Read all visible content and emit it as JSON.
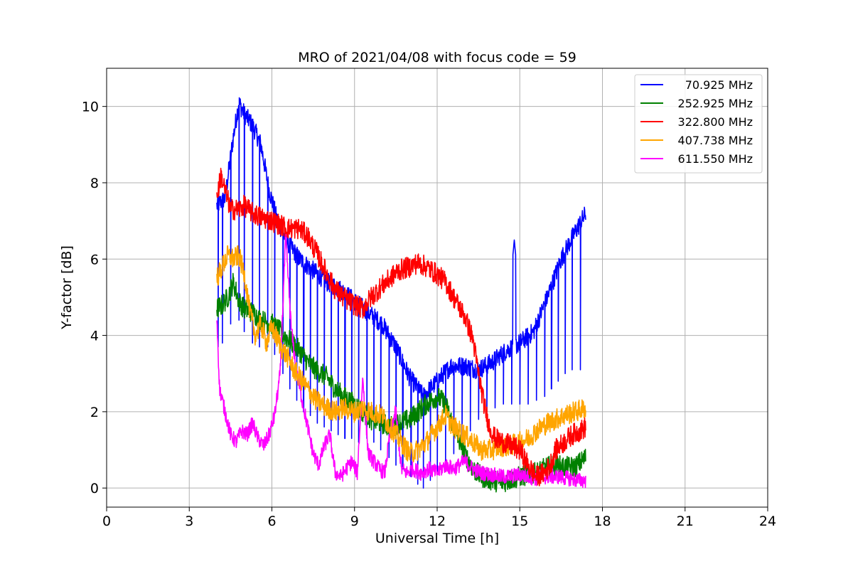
{
  "chart_data": {
    "type": "line",
    "title": "MRO of 2021/04/08 with focus code = 59",
    "xlabel": "Universal Time [h]",
    "ylabel": "Y-factor [dB]",
    "xlim": [
      0,
      24
    ],
    "ylim": [
      -0.5,
      11
    ],
    "xticks": [
      0,
      3,
      6,
      9,
      12,
      15,
      18,
      21,
      24
    ],
    "yticks": [
      0,
      2,
      4,
      6,
      8,
      10
    ],
    "grid": true,
    "legend_position": "top-right",
    "x_start": 4.0,
    "x_end": 17.4,
    "series": [
      {
        "name": "70.925 MHz",
        "color": "#0000ff",
        "baseline": [
          [
            4.0,
            7.4
          ],
          [
            4.3,
            7.6
          ],
          [
            4.6,
            9.2
          ],
          [
            4.8,
            10.1
          ],
          [
            5.0,
            9.8
          ],
          [
            5.3,
            9.5
          ],
          [
            5.6,
            9.0
          ],
          [
            5.9,
            7.8
          ],
          [
            6.2,
            7.0
          ],
          [
            6.6,
            6.4
          ],
          [
            7.0,
            6.0
          ],
          [
            7.5,
            5.7
          ],
          [
            8.0,
            5.4
          ],
          [
            8.5,
            5.2
          ],
          [
            9.0,
            4.9
          ],
          [
            9.5,
            4.6
          ],
          [
            10.0,
            4.3
          ],
          [
            10.5,
            3.7
          ],
          [
            11.0,
            2.9
          ],
          [
            11.5,
            2.4
          ],
          [
            12.0,
            2.8
          ],
          [
            12.5,
            3.2
          ],
          [
            13.0,
            3.2
          ],
          [
            13.5,
            3.1
          ],
          [
            14.0,
            3.3
          ],
          [
            14.5,
            3.6
          ],
          [
            15.0,
            3.8
          ],
          [
            15.5,
            4.1
          ],
          [
            16.0,
            5.0
          ],
          [
            16.5,
            6.0
          ],
          [
            17.0,
            6.7
          ],
          [
            17.4,
            7.2
          ]
        ],
        "spikes": [
          4.05,
          4.2,
          4.5,
          4.8,
          5.0,
          5.3,
          5.55,
          5.85,
          6.1,
          6.4,
          6.65,
          6.9,
          7.15,
          7.4,
          7.65,
          7.9,
          8.15,
          8.4,
          8.65,
          8.9,
          9.15,
          9.45,
          9.7,
          9.95,
          10.25,
          10.5,
          10.75,
          11.05,
          11.3,
          11.5,
          11.75,
          12.0,
          12.3,
          12.6,
          12.9,
          13.2,
          13.5,
          13.8,
          14.1,
          14.4,
          14.7,
          15.0,
          15.3,
          15.6,
          15.9,
          16.15,
          16.4,
          16.65,
          16.9,
          17.2
        ],
        "spike_bottom": [
          3.7,
          3.8,
          4.3,
          4.4,
          4.1,
          3.8,
          3.7,
          3.7,
          3.5,
          3.0,
          2.6,
          2.3,
          2.0,
          1.9,
          1.7,
          1.6,
          1.5,
          1.4,
          1.3,
          1.3,
          1.2,
          1.3,
          1.2,
          1.0,
          0.8,
          0.6,
          0.5,
          0.3,
          0.1,
          0.0,
          0.2,
          0.4,
          0.7,
          0.9,
          1.2,
          1.5,
          1.8,
          2.0,
          2.1,
          2.2,
          2.2,
          2.2,
          2.2,
          2.3,
          2.4,
          2.6,
          2.8,
          3.0,
          3.1,
          3.1
        ],
        "extra_peaks": [
          [
            14.8,
            6.5
          ]
        ]
      },
      {
        "name": "252.925 MHz",
        "color": "#008000",
        "points": [
          [
            4.0,
            4.7
          ],
          [
            4.2,
            4.8
          ],
          [
            4.4,
            5.0
          ],
          [
            4.6,
            5.4
          ],
          [
            4.8,
            4.9
          ],
          [
            5.0,
            4.7
          ],
          [
            5.3,
            4.6
          ],
          [
            5.6,
            4.4
          ],
          [
            6.0,
            4.3
          ],
          [
            6.3,
            4.1
          ],
          [
            6.6,
            3.9
          ],
          [
            7.0,
            3.6
          ],
          [
            7.3,
            3.3
          ],
          [
            7.6,
            3.1
          ],
          [
            8.0,
            2.9
          ],
          [
            8.3,
            2.6
          ],
          [
            8.6,
            2.4
          ],
          [
            9.0,
            2.2
          ],
          [
            9.3,
            2.0
          ],
          [
            9.6,
            1.8
          ],
          [
            10.0,
            1.7
          ],
          [
            10.3,
            1.6
          ],
          [
            10.6,
            1.7
          ],
          [
            11.0,
            1.8
          ],
          [
            11.3,
            2.0
          ],
          [
            11.6,
            2.2
          ],
          [
            12.0,
            2.4
          ],
          [
            12.3,
            2.2
          ],
          [
            12.6,
            1.6
          ],
          [
            13.0,
            0.9
          ],
          [
            13.3,
            0.5
          ],
          [
            13.6,
            0.3
          ],
          [
            14.0,
            0.2
          ],
          [
            14.3,
            0.15
          ],
          [
            14.6,
            0.2
          ],
          [
            15.0,
            0.3
          ],
          [
            15.3,
            0.35
          ],
          [
            15.6,
            0.4
          ],
          [
            16.0,
            0.55
          ],
          [
            16.3,
            0.6
          ],
          [
            16.6,
            0.55
          ],
          [
            17.0,
            0.55
          ],
          [
            17.4,
            0.8
          ]
        ]
      },
      {
        "name": "322.800 MHz",
        "color": "#ff0000",
        "points": [
          [
            4.0,
            7.6
          ],
          [
            4.15,
            8.2
          ],
          [
            4.3,
            7.8
          ],
          [
            4.5,
            7.3
          ],
          [
            4.8,
            7.3
          ],
          [
            5.0,
            7.4
          ],
          [
            5.3,
            7.2
          ],
          [
            5.6,
            7.1
          ],
          [
            6.0,
            7.0
          ],
          [
            6.3,
            6.9
          ],
          [
            6.6,
            6.8
          ],
          [
            7.0,
            6.8
          ],
          [
            7.3,
            6.6
          ],
          [
            7.6,
            6.2
          ],
          [
            8.0,
            5.6
          ],
          [
            8.3,
            5.2
          ],
          [
            8.6,
            5.0
          ],
          [
            9.0,
            4.8
          ],
          [
            9.3,
            4.7
          ],
          [
            9.6,
            5.0
          ],
          [
            10.0,
            5.3
          ],
          [
            10.3,
            5.5
          ],
          [
            10.6,
            5.7
          ],
          [
            11.0,
            5.8
          ],
          [
            11.3,
            5.9
          ],
          [
            11.6,
            5.8
          ],
          [
            12.0,
            5.6
          ],
          [
            12.3,
            5.4
          ],
          [
            12.6,
            5.0
          ],
          [
            13.0,
            4.5
          ],
          [
            13.3,
            3.9
          ],
          [
            13.5,
            3.0
          ],
          [
            13.7,
            2.2
          ],
          [
            13.9,
            1.6
          ],
          [
            14.1,
            1.3
          ],
          [
            14.4,
            1.2
          ],
          [
            14.7,
            1.1
          ],
          [
            15.0,
            1.0
          ],
          [
            15.3,
            0.6
          ],
          [
            15.6,
            0.3
          ],
          [
            15.9,
            0.4
          ],
          [
            16.1,
            0.6
          ],
          [
            16.3,
            1.0
          ],
          [
            16.6,
            1.2
          ],
          [
            16.9,
            1.4
          ],
          [
            17.2,
            1.5
          ],
          [
            17.4,
            1.6
          ]
        ]
      },
      {
        "name": "407.738 MHz",
        "color": "#ffa500",
        "points": [
          [
            4.0,
            5.5
          ],
          [
            4.2,
            5.8
          ],
          [
            4.4,
            6.1
          ],
          [
            4.6,
            6.0
          ],
          [
            4.8,
            6.1
          ],
          [
            5.0,
            5.6
          ],
          [
            5.2,
            4.6
          ],
          [
            5.4,
            4.0
          ],
          [
            5.6,
            4.3
          ],
          [
            5.8,
            3.8
          ],
          [
            6.0,
            4.2
          ],
          [
            6.2,
            3.9
          ],
          [
            6.4,
            3.6
          ],
          [
            6.6,
            3.4
          ],
          [
            6.8,
            3.1
          ],
          [
            7.0,
            2.9
          ],
          [
            7.3,
            2.6
          ],
          [
            7.6,
            2.3
          ],
          [
            8.0,
            2.1
          ],
          [
            8.3,
            2.0
          ],
          [
            8.6,
            2.1
          ],
          [
            9.0,
            2.0
          ],
          [
            9.3,
            2.1
          ],
          [
            9.6,
            2.0
          ],
          [
            10.0,
            1.9
          ],
          [
            10.3,
            1.6
          ],
          [
            10.6,
            1.3
          ],
          [
            11.0,
            0.9
          ],
          [
            11.3,
            1.0
          ],
          [
            11.6,
            1.2
          ],
          [
            12.0,
            1.6
          ],
          [
            12.3,
            1.9
          ],
          [
            12.6,
            1.6
          ],
          [
            13.0,
            1.4
          ],
          [
            13.3,
            1.2
          ],
          [
            13.6,
            1.0
          ],
          [
            14.0,
            1.0
          ],
          [
            14.3,
            1.1
          ],
          [
            14.6,
            1.1
          ],
          [
            15.0,
            1.2
          ],
          [
            15.3,
            1.3
          ],
          [
            15.6,
            1.5
          ],
          [
            16.0,
            1.7
          ],
          [
            16.3,
            1.8
          ],
          [
            16.6,
            1.9
          ],
          [
            17.0,
            2.0
          ],
          [
            17.4,
            2.1
          ]
        ]
      },
      {
        "name": "611.550 MHz",
        "color": "#ff00ff",
        "points": [
          [
            4.0,
            4.5
          ],
          [
            4.1,
            2.6
          ],
          [
            4.3,
            2.0
          ],
          [
            4.5,
            1.4
          ],
          [
            4.7,
            1.2
          ],
          [
            4.9,
            1.5
          ],
          [
            5.1,
            1.4
          ],
          [
            5.3,
            1.7
          ],
          [
            5.5,
            1.3
          ],
          [
            5.7,
            1.1
          ],
          [
            5.9,
            1.4
          ],
          [
            6.1,
            1.9
          ],
          [
            6.3,
            3.0
          ],
          [
            6.5,
            6.6
          ],
          [
            6.7,
            4.2
          ],
          [
            6.9,
            3.0
          ],
          [
            7.1,
            2.3
          ],
          [
            7.3,
            1.6
          ],
          [
            7.5,
            0.9
          ],
          [
            7.7,
            0.6
          ],
          [
            7.9,
            1.1
          ],
          [
            8.1,
            1.4
          ],
          [
            8.3,
            0.4
          ],
          [
            8.5,
            0.3
          ],
          [
            8.7,
            0.5
          ],
          [
            8.9,
            0.7
          ],
          [
            9.1,
            0.4
          ],
          [
            9.3,
            2.9
          ],
          [
            9.5,
            0.9
          ],
          [
            9.7,
            0.7
          ],
          [
            9.9,
            0.5
          ],
          [
            10.1,
            0.4
          ],
          [
            10.3,
            1.5
          ],
          [
            10.5,
            2.0
          ],
          [
            10.7,
            0.5
          ],
          [
            10.9,
            0.4
          ],
          [
            11.1,
            0.5
          ],
          [
            11.4,
            0.4
          ],
          [
            11.7,
            0.5
          ],
          [
            12.0,
            0.4
          ],
          [
            12.3,
            0.6
          ],
          [
            12.6,
            0.5
          ],
          [
            13.0,
            0.7
          ],
          [
            13.3,
            0.5
          ],
          [
            13.6,
            0.4
          ],
          [
            14.0,
            0.35
          ],
          [
            14.3,
            0.3
          ],
          [
            14.6,
            0.3
          ],
          [
            15.0,
            0.35
          ],
          [
            15.3,
            0.3
          ],
          [
            15.6,
            0.25
          ],
          [
            16.0,
            0.3
          ],
          [
            16.4,
            0.3
          ],
          [
            16.8,
            0.25
          ],
          [
            17.1,
            0.2
          ],
          [
            17.4,
            0.2
          ]
        ]
      }
    ]
  }
}
